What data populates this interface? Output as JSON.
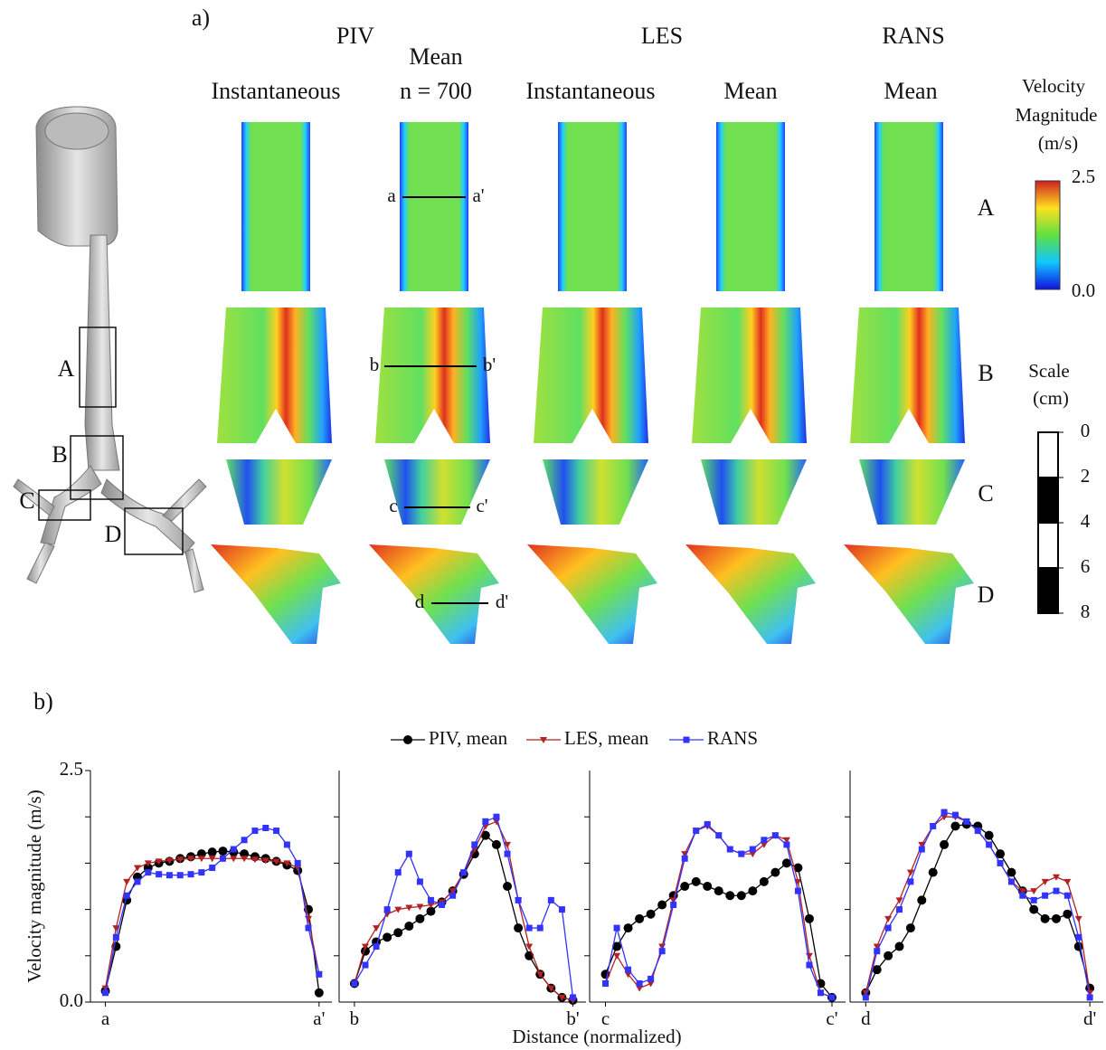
{
  "figure": {
    "panel_a_label": "a)",
    "panel_b_label": "b)",
    "groups": [
      "PIV",
      "LES",
      "RANS"
    ],
    "columns": [
      [
        "Instantaneous"
      ],
      [
        "Mean",
        "n = 700"
      ],
      [
        "Instantaneous"
      ],
      [
        "Mean"
      ],
      [
        "Mean"
      ]
    ],
    "rows": [
      "A",
      "B",
      "C",
      "D"
    ],
    "airway_labels": [
      "A",
      "B",
      "C",
      "D"
    ],
    "cut_lines": [
      [
        "a",
        "a'"
      ],
      [
        "b",
        "b'"
      ],
      [
        "c",
        "c'"
      ],
      [
        "d",
        "d'"
      ]
    ],
    "colorbar": {
      "title": [
        "Velocity",
        "Magnitude",
        "(m/s)"
      ],
      "max": 2.5,
      "min": {
        "value": 0,
        "label": "0.0"
      }
    },
    "scale": {
      "title": [
        "Scale",
        "(cm)"
      ],
      "ticks": [
        0,
        2,
        4,
        6,
        8
      ]
    }
  },
  "chart_data": [
    {
      "type": "line",
      "ylabel": "Velocity magnitude (m/s)",
      "xlabel": "Distance (normalized)",
      "xlim": [
        -0.07,
        1.06
      ],
      "ylim": [
        0,
        2.5
      ],
      "xticks": [
        {
          "value": 0,
          "label": "a"
        },
        {
          "value": 1,
          "label": "a'"
        }
      ],
      "yticks": [
        {
          "value": 0,
          "label": "0.0"
        },
        2.5
      ],
      "minor_yticks": [
        0.5,
        1,
        1.5,
        2
      ],
      "x": [
        0,
        0.05,
        0.1,
        0.15,
        0.2,
        0.25,
        0.3,
        0.35,
        0.4,
        0.45,
        0.5,
        0.55,
        0.6,
        0.65,
        0.7,
        0.75,
        0.8,
        0.85,
        0.9,
        0.95,
        1
      ],
      "series": [
        {
          "name": "PIV, mean",
          "color": "#000000",
          "marker": "circle",
          "values": [
            0.12,
            0.6,
            1.1,
            1.35,
            1.45,
            1.5,
            1.52,
            1.55,
            1.57,
            1.6,
            1.62,
            1.63,
            1.62,
            1.6,
            1.57,
            1.55,
            1.52,
            1.48,
            1.42,
            1.0,
            0.1
          ]
        },
        {
          "name": "LES, mean",
          "color": "#b22222",
          "marker": "triangle",
          "values": [
            0.15,
            0.8,
            1.3,
            1.45,
            1.5,
            1.52,
            1.53,
            1.54,
            1.55,
            1.55,
            1.55,
            1.55,
            1.55,
            1.55,
            1.54,
            1.53,
            1.52,
            1.5,
            1.45,
            0.9,
            0.3
          ]
        },
        {
          "name": "RANS",
          "color": "#3333ff",
          "marker": "square",
          "values": [
            0.1,
            0.7,
            1.15,
            1.3,
            1.4,
            1.38,
            1.37,
            1.37,
            1.38,
            1.4,
            1.45,
            1.55,
            1.65,
            1.75,
            1.85,
            1.88,
            1.85,
            1.7,
            1.5,
            0.8,
            0.3
          ]
        }
      ]
    },
    {
      "type": "line",
      "xlim": [
        -0.07,
        1.06
      ],
      "ylim": [
        0,
        2.5
      ],
      "xticks": [
        {
          "value": 0,
          "label": "b"
        },
        {
          "value": 1,
          "label": "b'"
        }
      ],
      "minor_yticks": [
        0.5,
        1,
        1.5,
        2
      ],
      "x": [
        0,
        0.05,
        0.1,
        0.15,
        0.2,
        0.25,
        0.3,
        0.35,
        0.4,
        0.45,
        0.5,
        0.55,
        0.6,
        0.65,
        0.7,
        0.75,
        0.8,
        0.85,
        0.9,
        0.95,
        1
      ],
      "series": [
        {
          "name": "PIV, mean",
          "color": "#000000",
          "marker": "circle",
          "values": [
            0.2,
            0.55,
            0.65,
            0.7,
            0.75,
            0.82,
            0.9,
            0.98,
            1.08,
            1.2,
            1.38,
            1.6,
            1.8,
            1.7,
            1.25,
            0.8,
            0.5,
            0.3,
            0.15,
            0.05,
            0.02
          ]
        },
        {
          "name": "LES, mean",
          "color": "#b22222",
          "marker": "triangle",
          "values": [
            0.2,
            0.6,
            0.8,
            0.95,
            1.0,
            1.02,
            1.03,
            1.05,
            1.08,
            1.2,
            1.4,
            1.65,
            1.9,
            1.95,
            1.7,
            1.1,
            0.6,
            0.3,
            0.15,
            0.05,
            0.02
          ]
        },
        {
          "name": "RANS",
          "color": "#3333ff",
          "marker": "square",
          "values": [
            0.2,
            0.4,
            0.6,
            1.0,
            1.4,
            1.6,
            1.3,
            1.1,
            1.05,
            1.15,
            1.4,
            1.7,
            1.95,
            2.0,
            1.6,
            1.1,
            0.8,
            0.8,
            1.1,
            1.0,
            0.05
          ]
        }
      ]
    },
    {
      "type": "line",
      "xlim": [
        -0.07,
        1.06
      ],
      "ylim": [
        0,
        2.5
      ],
      "xticks": [
        {
          "value": 0,
          "label": "c"
        },
        {
          "value": 1,
          "label": "c'"
        }
      ],
      "minor_yticks": [
        0.5,
        1,
        1.5,
        2
      ],
      "x": [
        0,
        0.05,
        0.1,
        0.15,
        0.2,
        0.25,
        0.3,
        0.35,
        0.4,
        0.45,
        0.5,
        0.55,
        0.6,
        0.65,
        0.7,
        0.75,
        0.8,
        0.85,
        0.9,
        0.95,
        1
      ],
      "series": [
        {
          "name": "PIV, mean",
          "color": "#000000",
          "marker": "circle",
          "values": [
            0.3,
            0.6,
            0.8,
            0.9,
            0.95,
            1.05,
            1.15,
            1.25,
            1.3,
            1.25,
            1.2,
            1.15,
            1.15,
            1.2,
            1.3,
            1.4,
            1.5,
            1.45,
            0.9,
            0.2,
            0.05
          ]
        },
        {
          "name": "LES, mean",
          "color": "#b22222",
          "marker": "triangle",
          "values": [
            0.2,
            0.5,
            0.3,
            0.15,
            0.2,
            0.6,
            1.1,
            1.6,
            1.85,
            1.9,
            1.8,
            1.65,
            1.6,
            1.6,
            1.7,
            1.8,
            1.75,
            1.3,
            0.5,
            0.1,
            0.05
          ]
        },
        {
          "name": "RANS",
          "color": "#3333ff",
          "marker": "square",
          "values": [
            0.2,
            0.8,
            0.35,
            0.2,
            0.25,
            0.55,
            1.05,
            1.55,
            1.85,
            1.92,
            1.8,
            1.65,
            1.6,
            1.65,
            1.75,
            1.8,
            1.7,
            1.2,
            0.4,
            0.1,
            0.05
          ]
        }
      ]
    },
    {
      "type": "line",
      "xlim": [
        -0.07,
        1.06
      ],
      "ylim": [
        0,
        2.5
      ],
      "xticks": [
        {
          "value": 0,
          "label": "d"
        },
        {
          "value": 1,
          "label": "d'"
        }
      ],
      "minor_yticks": [
        0.5,
        1,
        1.5,
        2
      ],
      "x": [
        0,
        0.05,
        0.1,
        0.15,
        0.2,
        0.25,
        0.3,
        0.35,
        0.4,
        0.45,
        0.5,
        0.55,
        0.6,
        0.65,
        0.7,
        0.75,
        0.8,
        0.85,
        0.9,
        0.95,
        1
      ],
      "series": [
        {
          "name": "PIV, mean",
          "color": "#000000",
          "marker": "circle",
          "values": [
            0.1,
            0.35,
            0.5,
            0.6,
            0.8,
            1.1,
            1.4,
            1.7,
            1.9,
            1.92,
            1.9,
            1.8,
            1.6,
            1.4,
            1.2,
            1.0,
            0.9,
            0.9,
            0.95,
            0.6,
            0.15
          ]
        },
        {
          "name": "LES, mean",
          "color": "#b22222",
          "marker": "triangle",
          "values": [
            0.1,
            0.6,
            0.9,
            1.1,
            1.4,
            1.7,
            1.9,
            2.0,
            2.0,
            1.95,
            1.85,
            1.7,
            1.5,
            1.3,
            1.2,
            1.2,
            1.3,
            1.35,
            1.3,
            0.9,
            0.1
          ]
        },
        {
          "name": "RANS",
          "color": "#3333ff",
          "marker": "square",
          "values": [
            0.05,
            0.55,
            0.8,
            1.0,
            1.3,
            1.65,
            1.9,
            2.05,
            2.02,
            1.95,
            1.85,
            1.7,
            1.5,
            1.3,
            1.15,
            1.1,
            1.15,
            1.2,
            1.15,
            0.7,
            0.05
          ]
        }
      ]
    }
  ]
}
